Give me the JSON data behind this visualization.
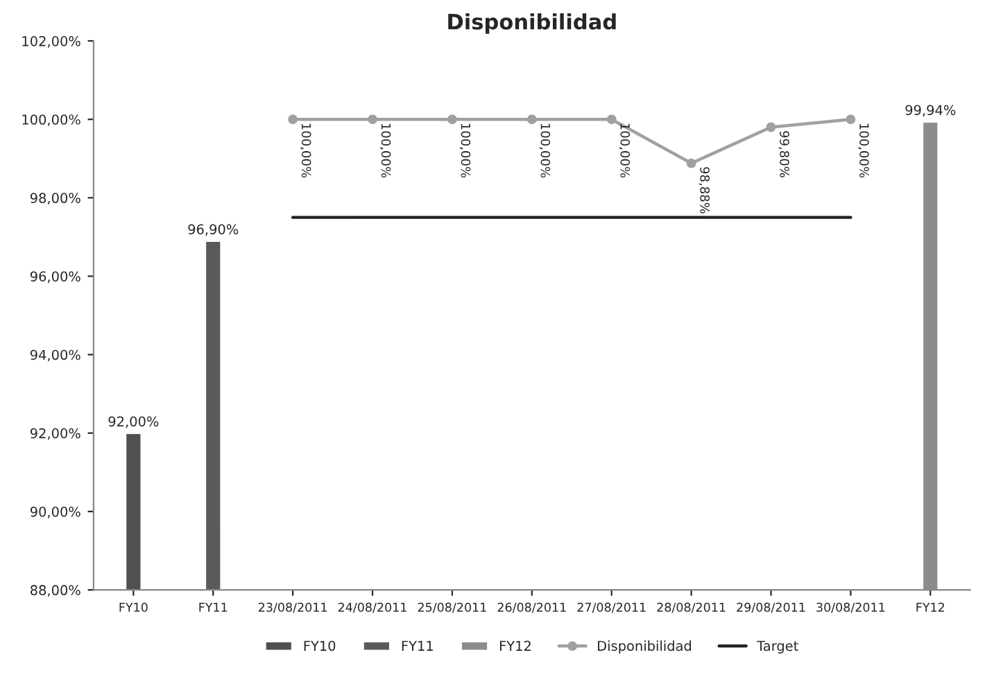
{
  "chart_data": {
    "type": "bar",
    "title": "Disponibilidad",
    "categories": [
      "FY10",
      "FY11",
      "23/08/2011",
      "24/08/2011",
      "25/08/2011",
      "26/08/2011",
      "27/08/2011",
      "28/08/2011",
      "29/08/2011",
      "30/08/2011",
      "FY12"
    ],
    "series": [
      {
        "name": "FY10",
        "color": "#505050",
        "values": [
          92.0,
          null,
          null,
          null,
          null,
          null,
          null,
          null,
          null,
          null,
          null
        ],
        "value_labels": [
          "92,00%",
          null,
          null,
          null,
          null,
          null,
          null,
          null,
          null,
          null,
          null
        ]
      },
      {
        "name": "FY11",
        "color": "#5a5a5a",
        "values": [
          null,
          96.9,
          null,
          null,
          null,
          null,
          null,
          null,
          null,
          null,
          null
        ],
        "value_labels": [
          null,
          "96,90%",
          null,
          null,
          null,
          null,
          null,
          null,
          null,
          null,
          null
        ]
      },
      {
        "name": "FY12",
        "color": "#8c8c8c",
        "values": [
          null,
          null,
          null,
          null,
          null,
          null,
          null,
          null,
          null,
          null,
          99.94
        ],
        "value_labels": [
          null,
          null,
          null,
          null,
          null,
          null,
          null,
          null,
          null,
          null,
          "99,94%"
        ]
      },
      {
        "name": "Disponibilidad",
        "type": "line",
        "marker": "circle",
        "color": "#a0a0a0",
        "values": [
          null,
          null,
          100.0,
          100.0,
          100.0,
          100.0,
          100.0,
          98.88,
          99.8,
          100.0,
          null
        ],
        "value_labels": [
          null,
          null,
          "100,00%",
          "100,00%",
          "100,00%",
          "100,00%",
          "100,00%",
          "98,88%",
          "99,80%",
          "100,00%",
          null
        ]
      },
      {
        "name": "Target",
        "type": "line",
        "marker": "none",
        "color": "#222222",
        "values": [
          null,
          null,
          97.5,
          97.5,
          97.5,
          97.5,
          97.5,
          97.5,
          97.5,
          97.5,
          null
        ]
      }
    ],
    "ylim": [
      88,
      102
    ],
    "yticks": [
      {
        "value": 88,
        "label": "88,00%"
      },
      {
        "value": 90,
        "label": "90,00%"
      },
      {
        "value": 92,
        "label": "92,00%"
      },
      {
        "value": 94,
        "label": "94,00%"
      },
      {
        "value": 96,
        "label": "96,00%"
      },
      {
        "value": 98,
        "label": "98,00%"
      },
      {
        "value": 100,
        "label": "100,00%"
      },
      {
        "value": 102,
        "label": "102,00%"
      }
    ],
    "grid": false,
    "legend": "bottom"
  }
}
